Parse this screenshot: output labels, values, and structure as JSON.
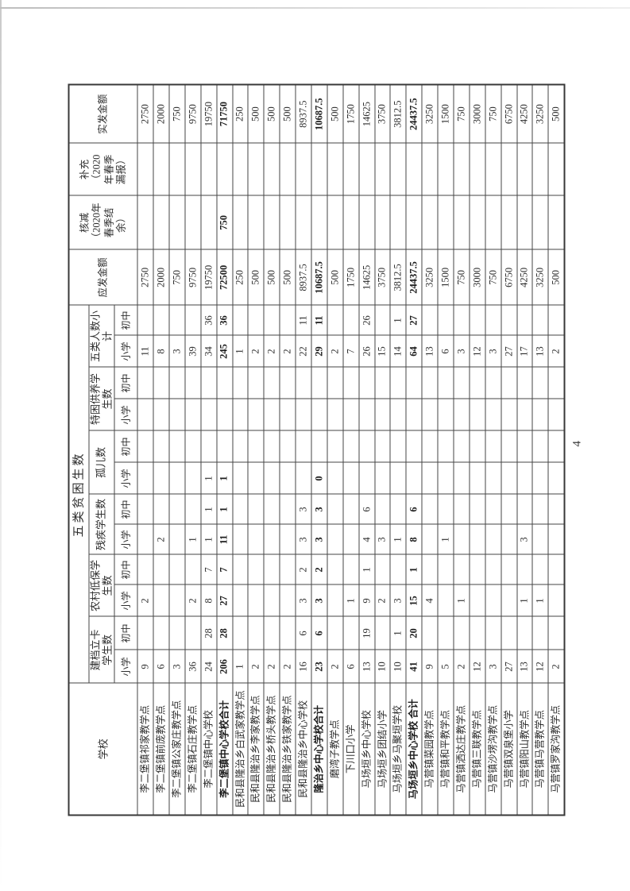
{
  "page": {
    "number": "4"
  },
  "table": {
    "title": "五类贫困生数",
    "headers": {
      "school": "学校",
      "sub_primary": "小学",
      "sub_junior": "初中",
      "groups": [
        {
          "label": "建档立卡\n学生数"
        },
        {
          "label": "农村低保学\n生数"
        },
        {
          "label": "残疾学生数"
        },
        {
          "label": "孤儿数"
        },
        {
          "label": "特困供养学\n生数"
        },
        {
          "label": "五类人数小\n计"
        }
      ],
      "amount_due": "应发金额",
      "deduction": "核减\n（2020年\n春季结\n余）",
      "supplement": "补充\n（2020\n年春季\n漏报）",
      "amount_paid": "实发金额"
    },
    "column_fields": [
      "建档立卡小学",
      "建档立卡初中",
      "农村低保小学",
      "农村低保初中",
      "残疾小学",
      "残疾初中",
      "孤儿小学",
      "孤儿初中",
      "特困供养小学",
      "特困供养初中",
      "五类小计小学",
      "五类小计初中",
      "应发金额",
      "核减",
      "补充",
      "实发金额"
    ],
    "rows": [
      {
        "school": "李二堡镇祁家教学点",
        "bold": false,
        "values": [
          "9",
          "",
          "2",
          "",
          "",
          "",
          "",
          "",
          "",
          "",
          "11",
          "",
          "2750",
          "",
          "",
          "2750"
        ]
      },
      {
        "school": "李二堡镇前庞教学点",
        "bold": false,
        "values": [
          "6",
          "",
          "",
          "",
          "2",
          "",
          "",
          "",
          "",
          "",
          "8",
          "",
          "2000",
          "",
          "",
          "2000"
        ]
      },
      {
        "school": "李二堡镇公家庄教学点",
        "bold": false,
        "values": [
          "3",
          "",
          "",
          "",
          "",
          "",
          "",
          "",
          "",
          "",
          "3",
          "",
          "750",
          "",
          "",
          "750"
        ]
      },
      {
        "school": "李二堡镇石庄教学点",
        "bold": false,
        "values": [
          "36",
          "",
          "2",
          "",
          "1",
          "",
          "",
          "",
          "",
          "",
          "39",
          "",
          "9750",
          "",
          "",
          "9750"
        ]
      },
      {
        "school": "李二堡镇中心学校",
        "bold": false,
        "values": [
          "24",
          "28",
          "8",
          "7",
          "1",
          "1",
          "1",
          "",
          "",
          "",
          "34",
          "36",
          "19750",
          "",
          "",
          "19750"
        ]
      },
      {
        "school": "李二堡镇中心学校合计",
        "bold": true,
        "values": [
          "206",
          "28",
          "27",
          "7",
          "11",
          "1",
          "1",
          "",
          "",
          "",
          "245",
          "36",
          "72500",
          "750",
          "",
          "71750"
        ]
      },
      {
        "school": "民和县隆治乡白武家教学点",
        "bold": false,
        "values": [
          "1",
          "",
          "",
          "",
          "",
          "",
          "",
          "",
          "",
          "",
          "1",
          "",
          "250",
          "",
          "",
          "250"
        ]
      },
      {
        "school": "民和县隆治乡李家教学点",
        "bold": false,
        "values": [
          "2",
          "",
          "",
          "",
          "",
          "",
          "",
          "",
          "",
          "",
          "2",
          "",
          "500",
          "",
          "",
          "500"
        ]
      },
      {
        "school": "民和县隆治乡桥头教学点",
        "bold": false,
        "values": [
          "2",
          "",
          "",
          "",
          "",
          "",
          "",
          "",
          "",
          "",
          "2",
          "",
          "500",
          "",
          "",
          "500"
        ]
      },
      {
        "school": "民和县隆治乡铁家教学点",
        "bold": false,
        "values": [
          "2",
          "",
          "",
          "",
          "",
          "",
          "",
          "",
          "",
          "",
          "2",
          "",
          "500",
          "",
          "",
          "500"
        ]
      },
      {
        "school": "民和县隆治乡中心学校",
        "bold": false,
        "values": [
          "16",
          "6",
          "3",
          "2",
          "3",
          "3",
          "",
          "",
          "",
          "",
          "22",
          "11",
          "8937.5",
          "",
          "",
          "8937.5"
        ]
      },
      {
        "school": "隆治乡中心学校合计",
        "bold": true,
        "values": [
          "23",
          "6",
          "3",
          "2",
          "3",
          "3",
          "0",
          "",
          "",
          "",
          "29",
          "11",
          "10687.5",
          "",
          "",
          "10687.5"
        ]
      },
      {
        "school": "磨湾子教学点",
        "bold": false,
        "values": [
          "2",
          "",
          "",
          "",
          "",
          "",
          "",
          "",
          "",
          "",
          "2",
          "",
          "500",
          "",
          "",
          "500"
        ]
      },
      {
        "school": "下川口小学",
        "bold": false,
        "values": [
          "6",
          "",
          "1",
          "",
          "",
          "",
          "",
          "",
          "",
          "",
          "7",
          "",
          "1750",
          "",
          "",
          "1750"
        ]
      },
      {
        "school": "马场垣乡中心学校",
        "bold": false,
        "values": [
          "13",
          "19",
          "9",
          "1",
          "4",
          "6",
          "",
          "",
          "",
          "",
          "26",
          "26",
          "14625",
          "",
          "",
          "14625"
        ]
      },
      {
        "school": "马场垣乡团结小学",
        "bold": false,
        "values": [
          "10",
          "",
          "2",
          "",
          "3",
          "",
          "",
          "",
          "",
          "",
          "15",
          "",
          "3750",
          "",
          "",
          "3750"
        ]
      },
      {
        "school": "马场垣乡马聚垣学校",
        "bold": false,
        "values": [
          "10",
          "1",
          "3",
          "",
          "1",
          "",
          "",
          "",
          "",
          "",
          "14",
          "1",
          "3812.5",
          "",
          "",
          "3812.5"
        ]
      },
      {
        "school": "马场垣乡中心学校 合计",
        "bold": true,
        "values": [
          "41",
          "20",
          "15",
          "1",
          "8",
          "6",
          "",
          "",
          "",
          "",
          "64",
          "27",
          "24437.5",
          "",
          "",
          "24437.5"
        ]
      },
      {
        "school": "马营镇菜园教学点",
        "bold": false,
        "values": [
          "9",
          "",
          "4",
          "",
          "",
          "",
          "",
          "",
          "",
          "",
          "13",
          "",
          "3250",
          "",
          "",
          "3250"
        ]
      },
      {
        "school": "马营镇和平教学点",
        "bold": false,
        "values": [
          "5",
          "",
          "",
          "",
          "1",
          "",
          "",
          "",
          "",
          "",
          "6",
          "",
          "1500",
          "",
          "",
          "1500"
        ]
      },
      {
        "school": "马营镇洒达庄教学点",
        "bold": false,
        "values": [
          "2",
          "",
          "1",
          "",
          "",
          "",
          "",
          "",
          "",
          "",
          "3",
          "",
          "750",
          "",
          "",
          "750"
        ]
      },
      {
        "school": "马营镇三联教学点",
        "bold": false,
        "values": [
          "12",
          "",
          "",
          "",
          "",
          "",
          "",
          "",
          "",
          "",
          "12",
          "",
          "3000",
          "",
          "",
          "3000"
        ]
      },
      {
        "school": "马营镇沙塄沟教学点",
        "bold": false,
        "values": [
          "3",
          "",
          "",
          "",
          "",
          "",
          "",
          "",
          "",
          "",
          "3",
          "",
          "750",
          "",
          "",
          "750"
        ]
      },
      {
        "school": "马营镇双泉堡小学",
        "bold": false,
        "values": [
          "27",
          "",
          "",
          "",
          "",
          "",
          "",
          "",
          "",
          "",
          "27",
          "",
          "6750",
          "",
          "",
          "6750"
        ]
      },
      {
        "school": "马营镇阳山教学点",
        "bold": false,
        "values": [
          "13",
          "",
          "1",
          "",
          "3",
          "",
          "",
          "",
          "",
          "",
          "17",
          "",
          "4250",
          "",
          "",
          "4250"
        ]
      },
      {
        "school": "马营镇马营教学点",
        "bold": false,
        "values": [
          "12",
          "",
          "1",
          "",
          "",
          "",
          "",
          "",
          "",
          "",
          "13",
          "",
          "3250",
          "",
          "",
          "3250"
        ]
      },
      {
        "school": "马营镇罗家沟教学点",
        "bold": false,
        "values": [
          "2",
          "",
          "",
          "",
          "",
          "",
          "",
          "",
          "",
          "",
          "2",
          "",
          "500",
          "",
          "",
          "500"
        ]
      }
    ]
  }
}
